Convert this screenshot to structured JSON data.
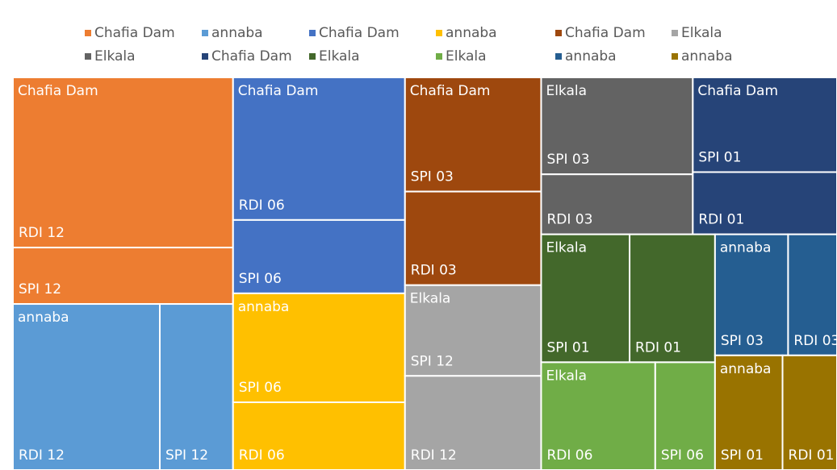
{
  "chart_data": {
    "type": "treemap",
    "groups": [
      {
        "name": "Chafia Dam",
        "color": "#ED7D31",
        "children": [
          {
            "label": "RDI 12",
            "value": 57.6
          },
          {
            "label": "SPI 12",
            "value": 19.1
          }
        ]
      },
      {
        "name": "annaba",
        "color": "#5B9BD5",
        "children": [
          {
            "label": "RDI 12",
            "value": 37.5
          },
          {
            "label": "SPI 12",
            "value": 18.7
          }
        ]
      },
      {
        "name": "Chafia Dam",
        "color": "#4472C4",
        "children": [
          {
            "label": "RDI 06",
            "value": 37.7
          },
          {
            "label": "SPI 06",
            "value": 19.4
          }
        ]
      },
      {
        "name": "annaba",
        "color": "#FFC000",
        "children": [
          {
            "label": "SPI 06",
            "value": 28.8
          },
          {
            "label": "RDI 06",
            "value": 17.9
          }
        ]
      },
      {
        "name": "Chafia Dam",
        "color": "#9E480E",
        "children": [
          {
            "label": "SPI 03",
            "value": 23.9
          },
          {
            "label": "RDI 03",
            "value": 19.6
          }
        ]
      },
      {
        "name": "Elkala",
        "color": "#A5A5A5",
        "children": [
          {
            "label": "SPI 12",
            "value": 19.0
          },
          {
            "label": "RDI 12",
            "value": 19.7
          }
        ]
      },
      {
        "name": "Elkala",
        "color": "#636363",
        "children": [
          {
            "label": "SPI 03",
            "value": 22.6
          },
          {
            "label": "RDI 03",
            "value": 14.0
          }
        ]
      },
      {
        "name": "Chafia Dam",
        "color": "#264478",
        "children": [
          {
            "label": "SPI 01",
            "value": 21.0
          },
          {
            "label": "RDI 01",
            "value": 13.8
          }
        ]
      },
      {
        "name": "Elkala",
        "color": "#43682B",
        "children": [
          {
            "label": "SPI 01",
            "value": 17.4
          },
          {
            "label": "RDI 01",
            "value": 16.8
          }
        ]
      },
      {
        "name": "Elkala",
        "color": "#70AD47",
        "children": [
          {
            "label": "RDI 06",
            "value": 18.9
          },
          {
            "label": "SPI 06",
            "value": 9.9
          }
        ]
      },
      {
        "name": "annaba",
        "color": "#255E91",
        "children": [
          {
            "label": "SPI 03",
            "value": 13.6
          },
          {
            "label": "RDI 03",
            "value": 9.1
          }
        ]
      },
      {
        "name": "annaba",
        "color": "#997300",
        "children": [
          {
            "label": "SPI 01",
            "value": 11.9
          },
          {
            "label": "RDI 01",
            "value": 9.6
          }
        ]
      }
    ]
  }
}
